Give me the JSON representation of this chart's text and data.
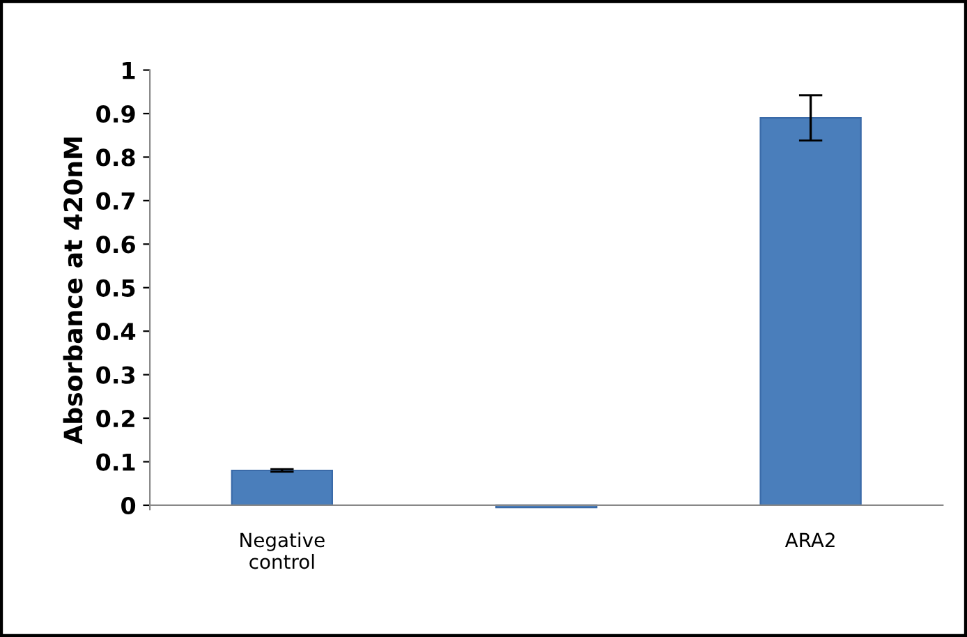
{
  "chart_data": {
    "type": "bar",
    "ylabel": "Absorbance at 420nM",
    "categories": [
      "Negative\ncontrol",
      null,
      "ARA2"
    ],
    "values": [
      0.08,
      -0.005,
      0.89
    ],
    "errors": [
      0.003,
      null,
      0.052
    ],
    "color": "#4a7ebb",
    "ylim": [
      -0.01,
      1
    ],
    "yticks": [
      0,
      0.1,
      0.2,
      0.3,
      0.4,
      0.5,
      0.6,
      0.7,
      0.8,
      0.9,
      1
    ],
    "grid": false,
    "legend": false
  }
}
